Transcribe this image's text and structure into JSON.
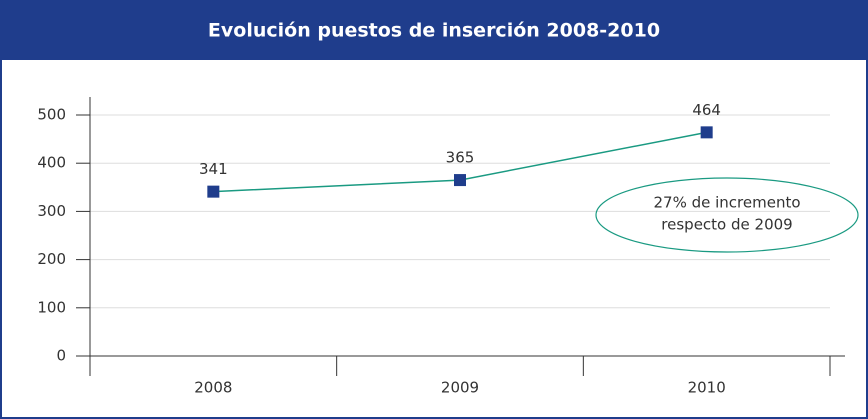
{
  "chart_data": {
    "type": "line",
    "title": "Evolución puestos de inserción 2008-2010",
    "categories": [
      "2008",
      "2009",
      "2010"
    ],
    "series": [
      {
        "name": "Puestos de inserción",
        "color": "#1a9a82",
        "marker_color": "#1f3d8c",
        "values": [
          341,
          365,
          464
        ]
      }
    ],
    "ylim": [
      0,
      500
    ],
    "yticks": [
      0,
      100,
      200,
      300,
      400,
      500
    ],
    "grid": true,
    "annotation": [
      "27% de incremento",
      "respecto de 2009"
    ]
  }
}
